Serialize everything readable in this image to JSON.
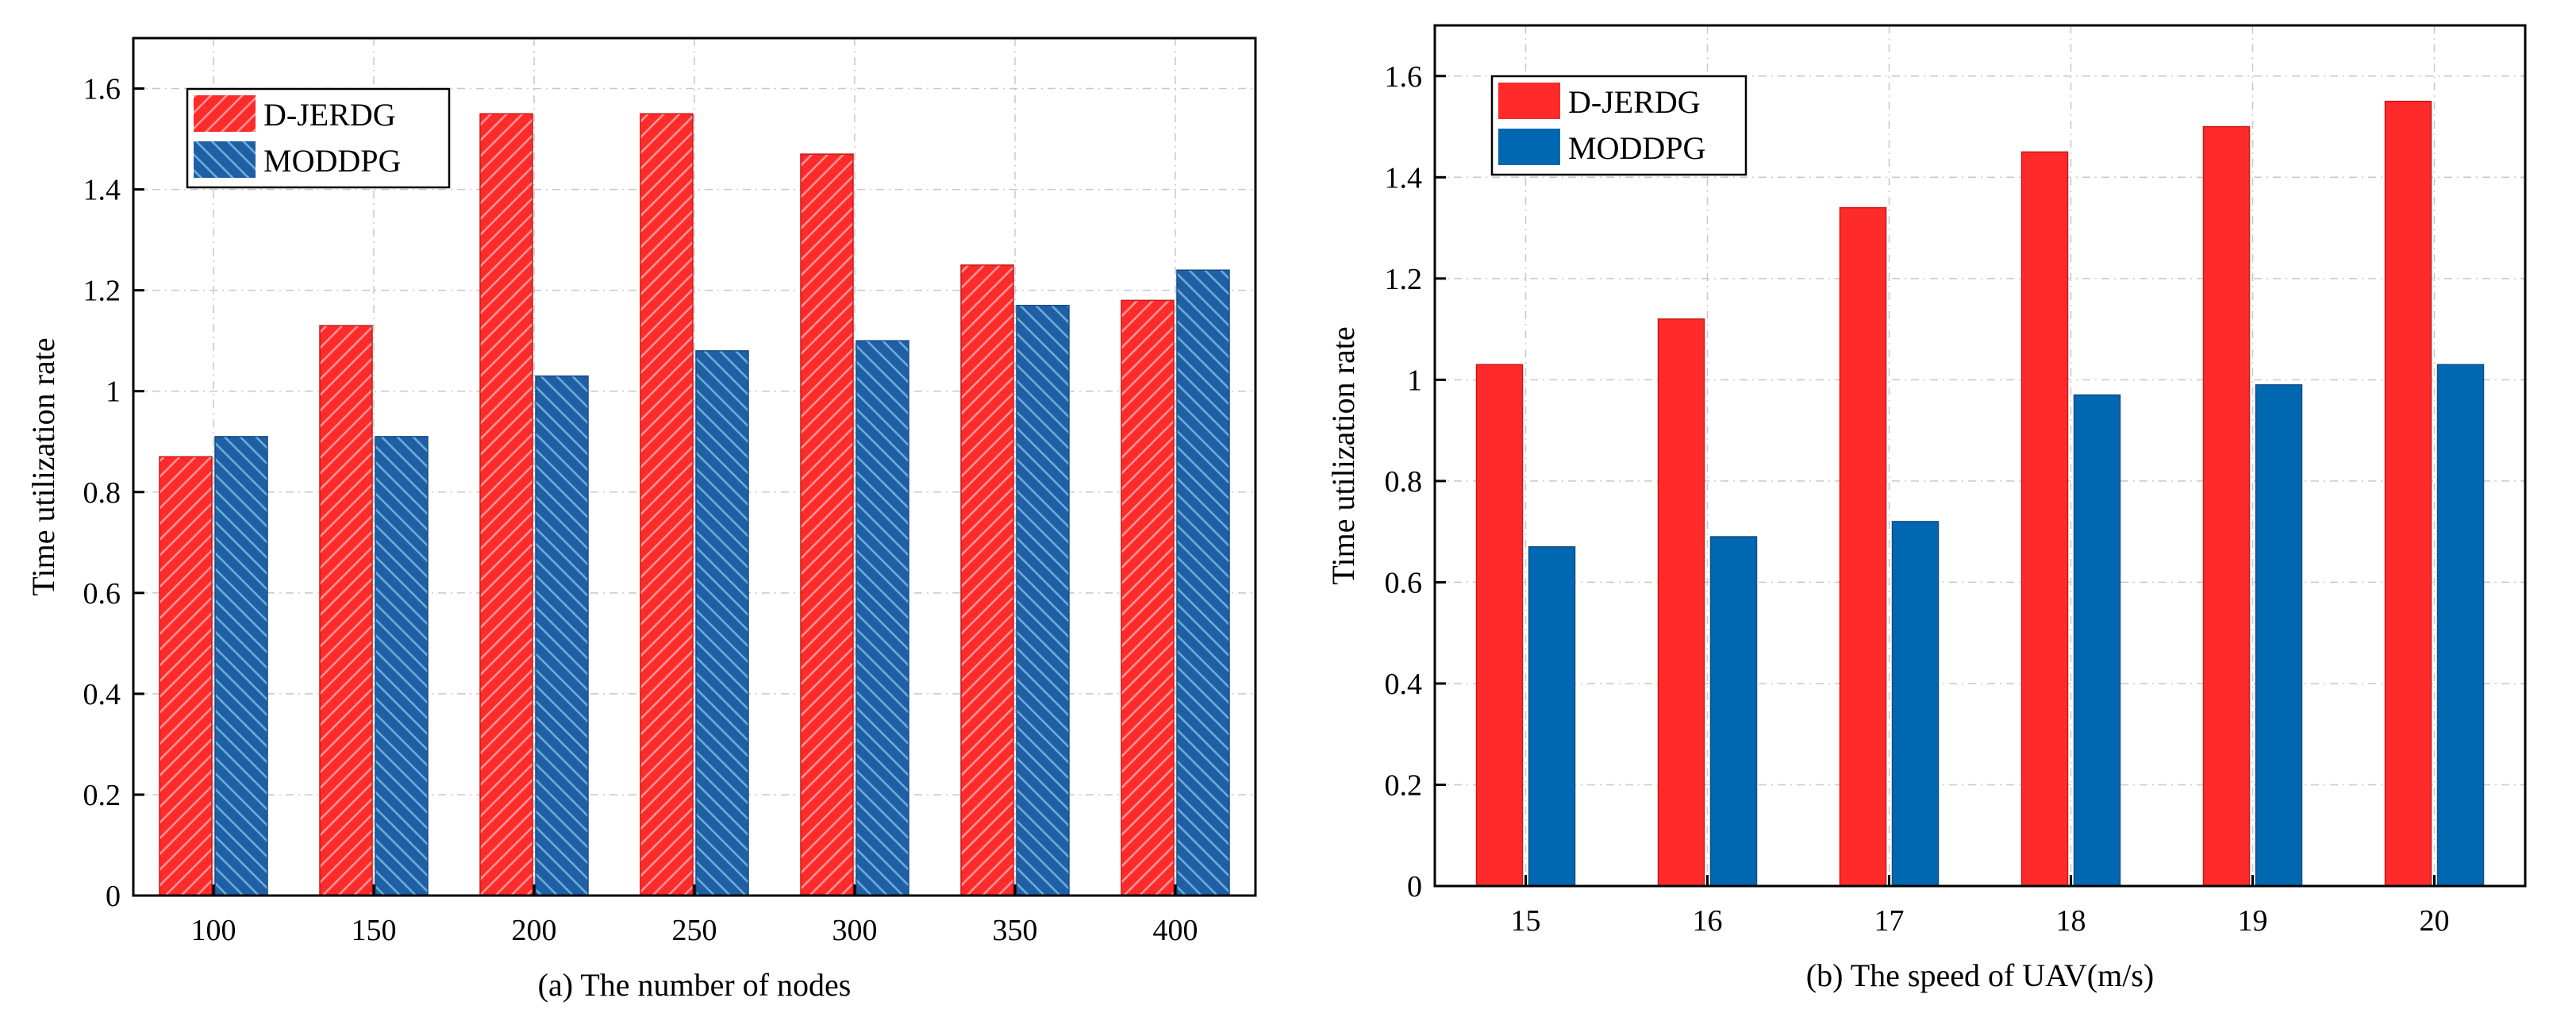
{
  "chart_data": [
    {
      "type": "bar",
      "caption": "(a) The number of nodes",
      "xlabel": "",
      "ylabel": "Time utilization rate",
      "categories": [
        "100",
        "150",
        "200",
        "250",
        "300",
        "350",
        "400"
      ],
      "ylim": [
        0,
        1.7
      ],
      "yticks": [
        "0",
        "0.2",
        "0.4",
        "0.6",
        "0.8",
        "1",
        "1.2",
        "1.4",
        "1.6"
      ],
      "grid": true,
      "legend_position": "top-left",
      "series": [
        {
          "name": "D-JERDG",
          "color": "#ff2a2a",
          "hatched": true,
          "values": [
            0.87,
            1.13,
            1.55,
            1.55,
            1.47,
            1.25,
            1.18
          ]
        },
        {
          "name": "MODDPG",
          "color": "#1f5fa6",
          "hatched": true,
          "values": [
            0.91,
            0.91,
            1.03,
            1.08,
            1.1,
            1.17,
            1.24
          ]
        }
      ]
    },
    {
      "type": "bar",
      "caption": "(b) The speed of UAV(m/s)",
      "xlabel": "",
      "ylabel": "Time utilization rate",
      "categories": [
        "15",
        "16",
        "17",
        "18",
        "19",
        "20"
      ],
      "ylim": [
        0,
        1.7
      ],
      "yticks": [
        "0",
        "0.2",
        "0.4",
        "0.6",
        "0.8",
        "1",
        "1.2",
        "1.4",
        "1.6"
      ],
      "grid": true,
      "legend_position": "top-left",
      "series": [
        {
          "name": "D-JERDG",
          "color": "#ff2a2a",
          "hatched": false,
          "values": [
            1.03,
            1.12,
            1.34,
            1.45,
            1.5,
            1.55
          ]
        },
        {
          "name": "MODDPG",
          "color": "#0068b0",
          "hatched": false,
          "values": [
            0.67,
            0.69,
            0.72,
            0.97,
            0.99,
            1.03
          ]
        }
      ]
    }
  ]
}
